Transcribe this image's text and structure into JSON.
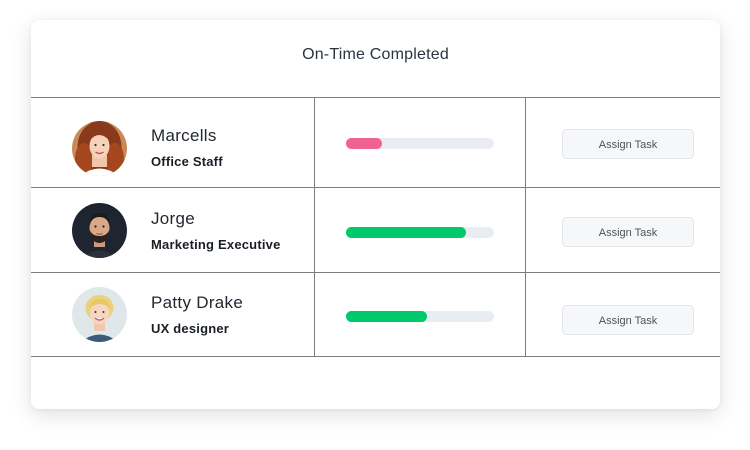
{
  "header": {
    "title": "On-Time Completed"
  },
  "rows": [
    {
      "name": "Marcells",
      "role": "Office Staff",
      "progress": 0.24,
      "progress_color": "#f06292",
      "button_label": "Assign Task",
      "avatar_icon": "woman-red-hair-portrait"
    },
    {
      "name": "Jorge",
      "role": "Marketing Executive",
      "progress": 0.81,
      "progress_color": "#00c96b",
      "button_label": "Assign Task",
      "avatar_icon": "bearded-man-portrait"
    },
    {
      "name": "Patty Drake",
      "role": "UX designer",
      "progress": 0.55,
      "progress_color": "#00c96b",
      "button_label": "Assign Task",
      "avatar_icon": "blonde-woman-portrait"
    }
  ],
  "colors": {
    "border": "#7d7d7d",
    "track": "#e9edf1",
    "button_bg": "#f6f7f8"
  }
}
